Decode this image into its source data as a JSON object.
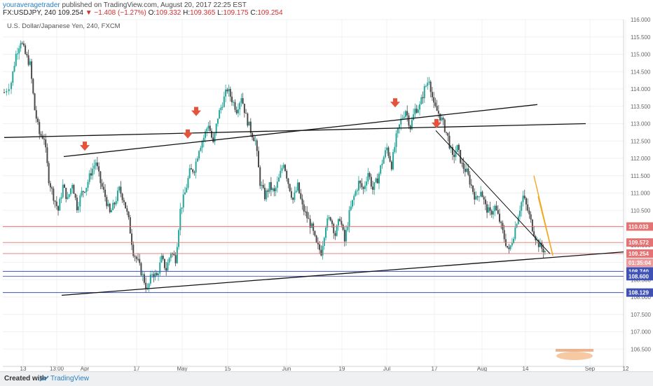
{
  "header": {
    "author": "youraveragetrader",
    "published": " published on TradingView.com, August 20, 2017 22:25 EST",
    "symbol": "FX:USDJPY, 240",
    "last": "109.254",
    "change": "−1.408 (−1.27%)",
    "o_label": "O:",
    "o_val": "109.332",
    "h_label": "H:",
    "h_val": "109.365",
    "l_label": "L:",
    "l_val": "109.175",
    "c_label": "C:",
    "c_val": "109.254"
  },
  "pane_title": "U.S. Dollar/Japanese Yen, 240, FXCM",
  "footer": {
    "created": "Created with",
    "brand": "TradingView"
  },
  "colors": {
    "up": "#26a69a",
    "down": "#4a4a4a",
    "arrow": "#e5533d",
    "red_line": "#e57373",
    "blue_line": "#3f51b5",
    "orange": "#f5a623",
    "trend": "#111111"
  },
  "chart_data": {
    "type": "candlestick",
    "title": "U.S. Dollar/Japanese Yen, 240, FXCM",
    "ylim": [
      106.0,
      116.0
    ],
    "y_ticks": [
      "116.000",
      "115.500",
      "115.000",
      "114.500",
      "114.000",
      "113.500",
      "113.000",
      "112.500",
      "112.000",
      "111.500",
      "111.000",
      "110.500",
      "110.000",
      "109.500",
      "109.000",
      "108.500",
      "108.000",
      "107.500",
      "107.000",
      "106.500"
    ],
    "x_ticks": [
      "13",
      "13:00",
      "Apr",
      "17",
      "May",
      "15",
      "Jun",
      "19",
      "Jul",
      "17",
      "Aug",
      "14",
      "Sep",
      "12"
    ],
    "close_path": [
      [
        0,
        113.9
      ],
      [
        3,
        114.2
      ],
      [
        5,
        115.0
      ],
      [
        7,
        115.4
      ],
      [
        9,
        115.0
      ],
      [
        11,
        114.7
      ],
      [
        13,
        113.4
      ],
      [
        15,
        112.7
      ],
      [
        17,
        112.6
      ],
      [
        19,
        111.4
      ],
      [
        21,
        110.9
      ],
      [
        23,
        110.5
      ],
      [
        25,
        111.2
      ],
      [
        27,
        110.8
      ],
      [
        29,
        111.3
      ],
      [
        31,
        110.6
      ],
      [
        33,
        111.0
      ],
      [
        35,
        111.2
      ],
      [
        37,
        111.6
      ],
      [
        39,
        111.9
      ],
      [
        41,
        111.3
      ],
      [
        43,
        110.9
      ],
      [
        45,
        110.4
      ],
      [
        47,
        110.7
      ],
      [
        49,
        111.1
      ],
      [
        51,
        110.8
      ],
      [
        53,
        110.2
      ],
      [
        55,
        109.3
      ],
      [
        57,
        109.0
      ],
      [
        59,
        108.6
      ],
      [
        61,
        108.2
      ],
      [
        63,
        108.7
      ],
      [
        65,
        108.6
      ],
      [
        67,
        109.1
      ],
      [
        69,
        108.8
      ],
      [
        71,
        109.3
      ],
      [
        73,
        109.1
      ],
      [
        75,
        110.5
      ],
      [
        77,
        111.0
      ],
      [
        79,
        111.6
      ],
      [
        81,
        111.7
      ],
      [
        83,
        112.3
      ],
      [
        85,
        112.6
      ],
      [
        87,
        113.0
      ],
      [
        89,
        112.4
      ],
      [
        91,
        113.2
      ],
      [
        93,
        113.6
      ],
      [
        95,
        114.0
      ],
      [
        97,
        113.7
      ],
      [
        99,
        113.4
      ],
      [
        101,
        113.8
      ],
      [
        103,
        113.2
      ],
      [
        105,
        112.8
      ],
      [
        107,
        112.5
      ],
      [
        109,
        111.3
      ],
      [
        111,
        110.9
      ],
      [
        113,
        111.2
      ],
      [
        115,
        111.0
      ],
      [
        117,
        111.4
      ],
      [
        119,
        111.9
      ],
      [
        121,
        111.3
      ],
      [
        123,
        110.8
      ],
      [
        125,
        111.2
      ],
      [
        127,
        110.6
      ],
      [
        129,
        110.3
      ],
      [
        131,
        110.0
      ],
      [
        133,
        109.5
      ],
      [
        135,
        109.3
      ],
      [
        137,
        110.1
      ],
      [
        139,
        110.3
      ],
      [
        141,
        109.8
      ],
      [
        143,
        110.3
      ],
      [
        145,
        109.6
      ],
      [
        147,
        110.4
      ],
      [
        149,
        110.9
      ],
      [
        151,
        111.3
      ],
      [
        153,
        111.1
      ],
      [
        155,
        111.6
      ],
      [
        157,
        111.1
      ],
      [
        159,
        111.4
      ],
      [
        161,
        111.9
      ],
      [
        163,
        112.3
      ],
      [
        165,
        111.8
      ],
      [
        167,
        112.6
      ],
      [
        169,
        113.1
      ],
      [
        171,
        113.4
      ],
      [
        173,
        112.9
      ],
      [
        175,
        113.4
      ],
      [
        177,
        113.5
      ],
      [
        179,
        114.0
      ],
      [
        181,
        114.3
      ],
      [
        183,
        113.5
      ],
      [
        185,
        113.3
      ],
      [
        187,
        113.0
      ],
      [
        189,
        112.6
      ],
      [
        191,
        112.0
      ],
      [
        193,
        112.3
      ],
      [
        195,
        111.8
      ],
      [
        197,
        111.6
      ],
      [
        199,
        111.2
      ],
      [
        201,
        110.8
      ],
      [
        203,
        111.1
      ],
      [
        205,
        110.6
      ],
      [
        207,
        110.4
      ],
      [
        209,
        110.6
      ],
      [
        211,
        110.2
      ],
      [
        213,
        109.7
      ],
      [
        215,
        109.3
      ],
      [
        217,
        109.8
      ],
      [
        219,
        110.4
      ],
      [
        221,
        110.9
      ],
      [
        223,
        110.5
      ],
      [
        225,
        110.0
      ],
      [
        227,
        109.6
      ],
      [
        229,
        109.4
      ],
      [
        231,
        109.3
      ]
    ],
    "horizontal_levels": [
      {
        "value": 110.033,
        "label": "110.033",
        "color": "#e57373"
      },
      {
        "value": 109.572,
        "label": "109.572",
        "color": "#e57373"
      },
      {
        "value": 109.254,
        "label": "109.254",
        "color": "#e57373"
      },
      {
        "value": 108.74,
        "label": "108.740",
        "color": "#3f51b5"
      },
      {
        "value": 108.6,
        "label": "108.600",
        "color": "#3f51b5"
      },
      {
        "value": 108.129,
        "label": "108.129",
        "color": "#3f51b5"
      }
    ],
    "price_tag_current": "109.254",
    "countdown_tag": "01:35:04"
  }
}
